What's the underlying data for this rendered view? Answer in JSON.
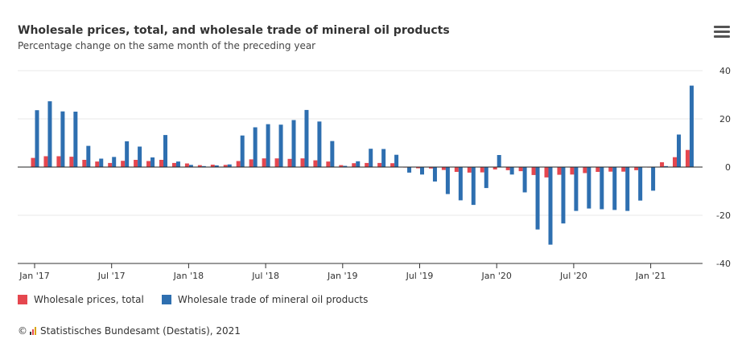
{
  "header": {
    "title": "Wholesale prices, total, and wholesale trade of mineral oil products",
    "subtitle": "Percentage change on the same month of the preceding year"
  },
  "credit": {
    "symbol": "©",
    "text": "Statistisches Bundesamt (Destatis), 2021"
  },
  "colors": {
    "total": "#e5474f",
    "mineral_oil": "#2e6fb0"
  },
  "chart_data": {
    "type": "bar",
    "categories": [
      "Jan '17",
      "Feb '17",
      "Mar '17",
      "Apr '17",
      "May '17",
      "Jun '17",
      "Jul '17",
      "Aug '17",
      "Sep '17",
      "Oct '17",
      "Nov '17",
      "Dec '17",
      "Jan '18",
      "Feb '18",
      "Mar '18",
      "Apr '18",
      "May '18",
      "Jun '18",
      "Jul '18",
      "Aug '18",
      "Sep '18",
      "Oct '18",
      "Nov '18",
      "Dec '18",
      "Jan '19",
      "Feb '19",
      "Mar '19",
      "Apr '19",
      "May '19",
      "Jun '19",
      "Jul '19",
      "Aug '19",
      "Sep '19",
      "Oct '19",
      "Nov '19",
      "Dec '19",
      "Jan '20",
      "Feb '20",
      "Mar '20",
      "Apr '20",
      "May '20",
      "Jun '20",
      "Jul '20",
      "Aug '20",
      "Sep '20",
      "Oct '20",
      "Nov '20",
      "Dec '20",
      "Jan '21",
      "Feb '21",
      "Mar '21",
      "Apr '21"
    ],
    "x_tick_labels": [
      "Jan '17",
      "Jul '17",
      "Jan '18",
      "Jul '18",
      "Jan '19",
      "Jul '19",
      "Jan '20",
      "Jul '20",
      "Jan '21"
    ],
    "series": [
      {
        "name": "Wholesale prices, total",
        "values": [
          3.8,
          4.5,
          4.5,
          4.3,
          3,
          2.3,
          1.7,
          2.6,
          3,
          2.5,
          3,
          1.7,
          1.5,
          0.8,
          1,
          0.9,
          2.5,
          3.2,
          3.6,
          3.6,
          3.4,
          3.6,
          2.8,
          2.3,
          0.8,
          1.6,
          1.7,
          1.7,
          1.6,
          -0.2,
          -0.5,
          -0.6,
          -1.2,
          -2,
          -2.3,
          -2.2,
          -1,
          -1.3,
          -1.7,
          -3.3,
          -4.3,
          -3.2,
          -3.1,
          -2.5,
          -2,
          -1.9,
          -1.9,
          -1.3,
          -0.2,
          2,
          4.1,
          7.1
        ]
      },
      {
        "name": "Wholesale trade of mineral oil products",
        "values": [
          23.6,
          27.3,
          23.1,
          23,
          8.8,
          3.5,
          4.2,
          10.7,
          8.5,
          4,
          13.3,
          2.3,
          0.9,
          0.4,
          0.7,
          1.1,
          13.1,
          16.5,
          17.8,
          17.6,
          19.5,
          23.7,
          18.9,
          10.8,
          0.5,
          2.4,
          7.6,
          7.5,
          5.1,
          -2.3,
          -3.1,
          -6,
          -11.2,
          -13.8,
          -15.7,
          -8.7,
          5,
          -3.1,
          -10.5,
          -25.9,
          -32.2,
          -23.4,
          -18.2,
          -17.2,
          -17.5,
          -17.8,
          -18.2,
          -13.9,
          -9.8,
          0.4,
          13.5,
          33.8
        ]
      }
    ],
    "y_ticks": [
      -40,
      -20,
      0,
      20,
      40
    ],
    "ylim": [
      -40,
      40
    ],
    "grid": true,
    "legend_position": "bottom-left",
    "y_axis_side": "right"
  }
}
